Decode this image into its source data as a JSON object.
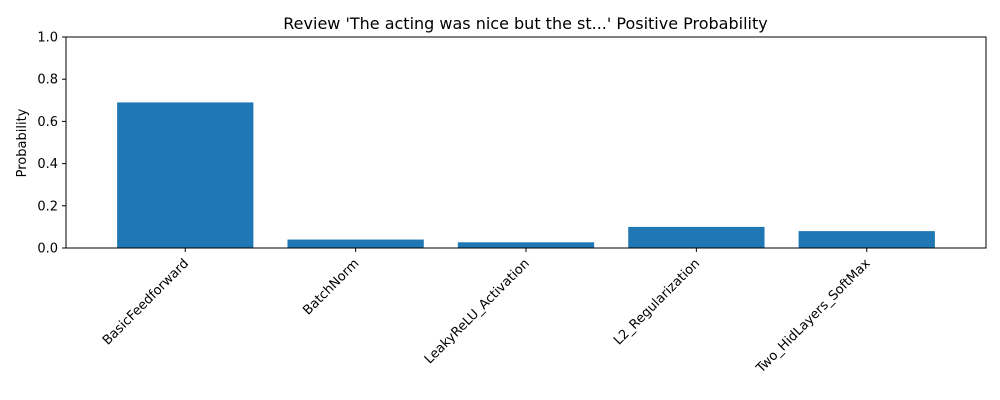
{
  "chart_data": {
    "type": "bar",
    "title": "Review 'The acting was nice but the st...' Positive Probability",
    "xlabel": "",
    "ylabel": "Probability",
    "categories": [
      "BasicFeedforward",
      "BatchNorm",
      "LeakyReLU_Activation",
      "L2_Regularization",
      "Two_HidLayers_SoftMax"
    ],
    "values": [
      0.69,
      0.04,
      0.027,
      0.1,
      0.08
    ],
    "ylim": [
      0,
      1.0
    ],
    "yticks": [
      "0.0",
      "0.2",
      "0.4",
      "0.6",
      "0.8",
      "1.0"
    ],
    "grid": false,
    "colors": {
      "bar": "#1f77b4"
    }
  }
}
